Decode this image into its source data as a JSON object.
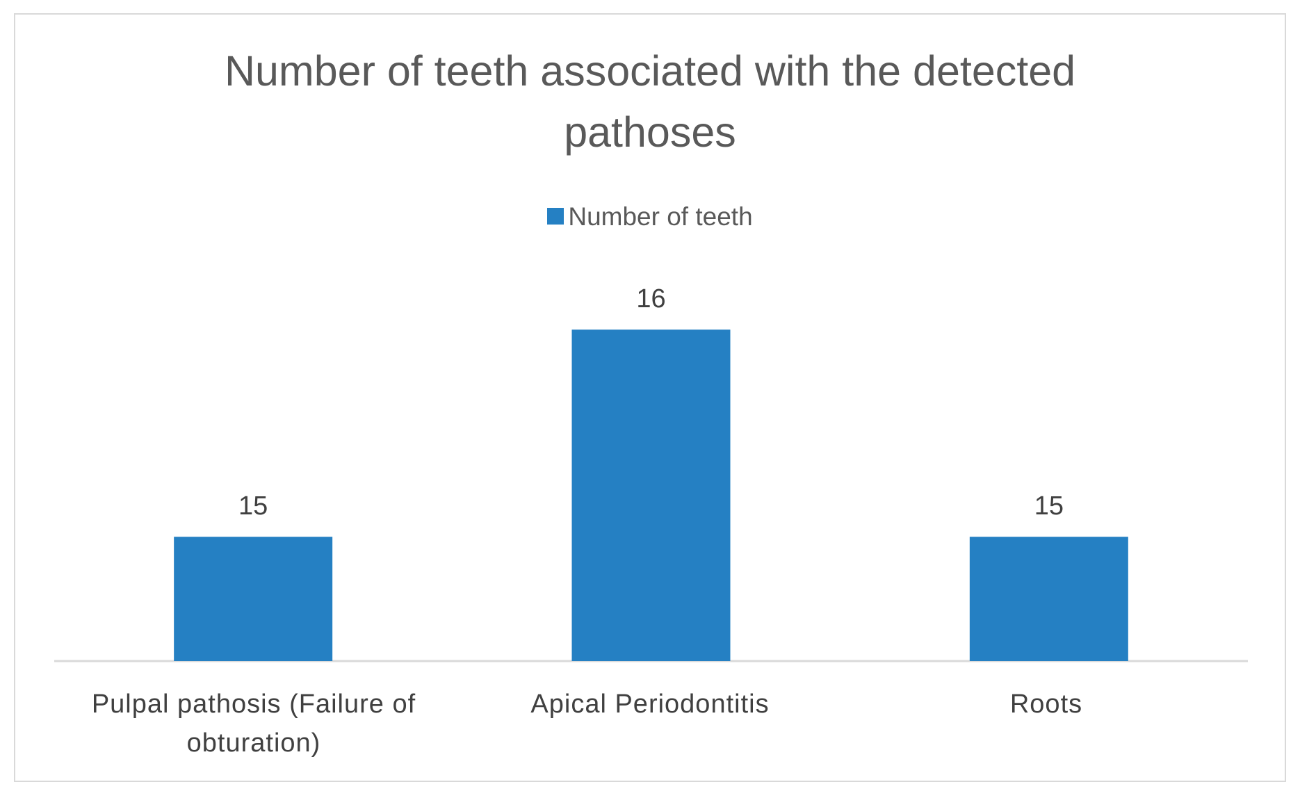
{
  "chart_data": {
    "type": "bar",
    "title": "Number of teeth associated with the detected pathoses",
    "categories": [
      "Pulpal pathosis (Failure of obturation)",
      "Apical Periodontitis",
      "Roots"
    ],
    "series": [
      {
        "name": "Number of teeth",
        "values": [
          15,
          16,
          15
        ],
        "color": "#2580c3"
      }
    ],
    "data_labels": [
      "15",
      "16",
      "15"
    ],
    "xlabel": "",
    "ylabel": "",
    "legend_position": "top-center",
    "grid": false,
    "y_axis_visible": false
  }
}
